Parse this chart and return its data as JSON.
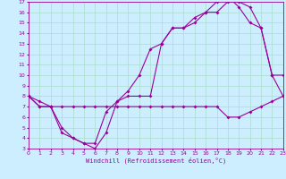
{
  "xlabel": "Windchill (Refroidissement éolien,°C)",
  "bg_color": "#cceeff",
  "grid_color": "#aaddcc",
  "line_color": "#990099",
  "xlim": [
    0,
    23
  ],
  "ylim": [
    3,
    17
  ],
  "xticks": [
    0,
    1,
    2,
    3,
    4,
    5,
    6,
    7,
    8,
    9,
    10,
    11,
    12,
    13,
    14,
    15,
    16,
    17,
    18,
    19,
    20,
    21,
    22,
    23
  ],
  "yticks": [
    3,
    4,
    5,
    6,
    7,
    8,
    9,
    10,
    11,
    12,
    13,
    14,
    15,
    16,
    17
  ],
  "line1_x": [
    0,
    1,
    2,
    3,
    4,
    5,
    6,
    7,
    8,
    9,
    10,
    11,
    12,
    13,
    14,
    15,
    16,
    17,
    18,
    19,
    20,
    21,
    22,
    23
  ],
  "line1_y": [
    8,
    7,
    7,
    5,
    4,
    3.5,
    3.5,
    6.5,
    7.5,
    8.5,
    10,
    12.5,
    13,
    14.5,
    14.5,
    15.5,
    16,
    17,
    17.5,
    16.5,
    15,
    14.5,
    10,
    8
  ],
  "line2_x": [
    0,
    1,
    2,
    3,
    4,
    5,
    6,
    7,
    8,
    9,
    10,
    11,
    12,
    13,
    14,
    15,
    16,
    17,
    18,
    19,
    20,
    21,
    22,
    23
  ],
  "line2_y": [
    8,
    7,
    7,
    4.5,
    4,
    3.5,
    3,
    4.5,
    7.5,
    8,
    8,
    8,
    13,
    14.5,
    14.5,
    15,
    16,
    16,
    17,
    17,
    16.5,
    14.5,
    10,
    10
  ],
  "line3_x": [
    0,
    1,
    2,
    3,
    4,
    5,
    6,
    7,
    8,
    9,
    10,
    11,
    12,
    13,
    14,
    15,
    16,
    17,
    18,
    19,
    20,
    21,
    22,
    23
  ],
  "line3_y": [
    8,
    7.5,
    7,
    7,
    7,
    7,
    7,
    7,
    7,
    7,
    7,
    7,
    7,
    7,
    7,
    7,
    7,
    7,
    6,
    6,
    6.5,
    7,
    7.5,
    8
  ]
}
